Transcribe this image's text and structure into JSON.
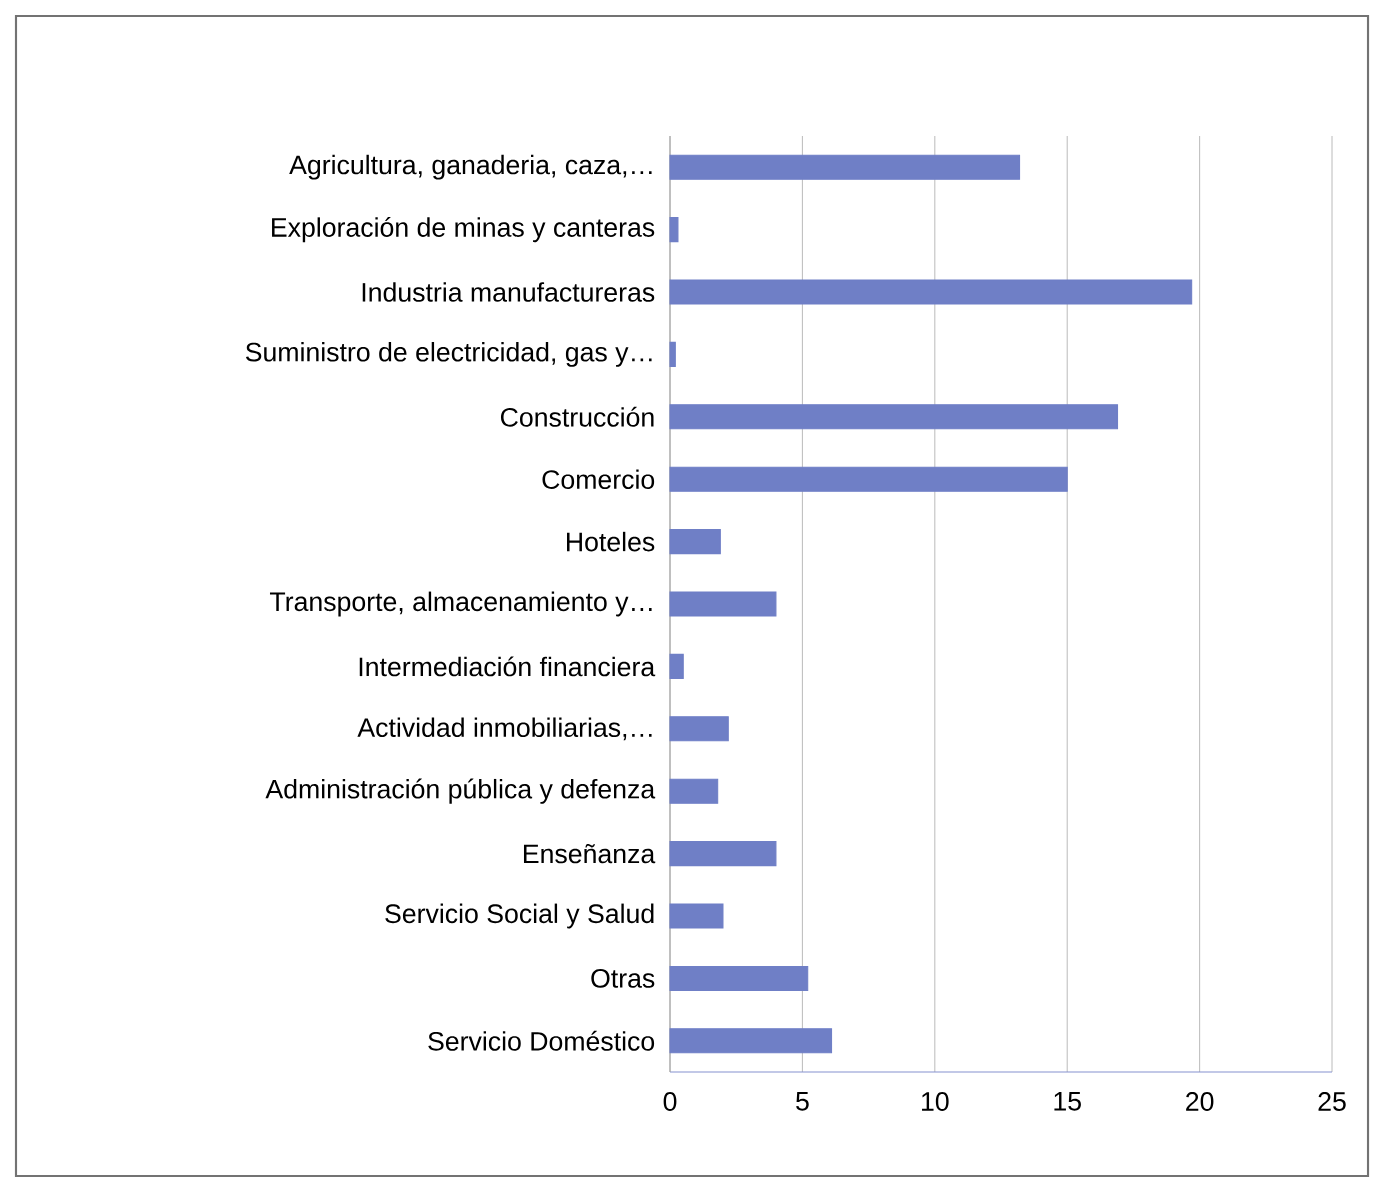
{
  "chart_data": {
    "type": "bar",
    "orientation": "horizontal",
    "categories": [
      "Agricultura, ganaderia, caza,…",
      "Exploración de minas y canteras",
      "Industria manufactureras",
      "Suministro de electricidad, gas y…",
      "Construcción",
      "Comercio",
      "Hoteles",
      "Transporte, almacenamiento y…",
      "Intermediación financiera",
      "Actividad inmobiliarias,…",
      "Administración pública y defenza",
      "Enseñanza",
      "Servicio Social y Salud",
      "Otras",
      "Servicio Doméstico"
    ],
    "values": [
      13.2,
      0.3,
      19.7,
      0.2,
      16.9,
      15.0,
      1.9,
      4.0,
      0.5,
      2.2,
      1.8,
      4.0,
      2.0,
      5.2,
      6.1
    ],
    "color": "#6f7fc6",
    "xlim": [
      0,
      25
    ],
    "xticks": [
      0,
      5,
      10,
      15,
      20,
      25
    ],
    "grid": "x"
  }
}
